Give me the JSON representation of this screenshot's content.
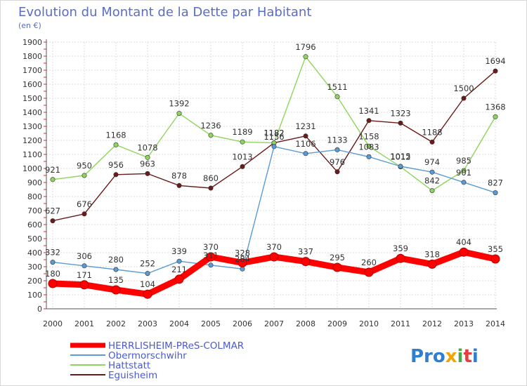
{
  "chart_data": {
    "type": "line",
    "title": "Evolution du Montant de la Dette par Habitant",
    "subtitle": "(en €)",
    "xlabel": "",
    "ylabel": "",
    "x": [
      "2000",
      "2001",
      "2002",
      "2003",
      "2004",
      "2005",
      "2006",
      "2007",
      "2008",
      "2009",
      "2010",
      "2011",
      "2012",
      "2013",
      "2014"
    ],
    "ylim": [
      0,
      1900
    ],
    "yticks": [
      0,
      100,
      200,
      300,
      400,
      500,
      600,
      700,
      800,
      900,
      1000,
      1100,
      1200,
      1300,
      1400,
      1500,
      1600,
      1700,
      1800,
      1900
    ],
    "grid": true,
    "legend_position": "bottom-left",
    "series": [
      {
        "name": "HERRLISHEIM-PReS-COLMAR",
        "color": "#ff0000",
        "values": [
          180,
          171,
          135,
          104,
          211,
          370,
          328,
          370,
          337,
          295,
          260,
          359,
          318,
          404,
          355
        ]
      },
      {
        "name": "Obermorschwihr",
        "color": "#5b9bd5",
        "values": [
          332,
          306,
          280,
          252,
          339,
          311,
          284,
          1156,
          1106,
          1133,
          1083,
          1015,
          974,
          901,
          827
        ]
      },
      {
        "name": "Hattstatt",
        "color": "#8fd45e",
        "values": [
          921,
          950,
          1168,
          1078,
          1392,
          1236,
          1189,
          1182,
          1796,
          1511,
          1158,
          1012,
          842,
          985,
          1368
        ]
      },
      {
        "name": "Eguisheim",
        "color": "#6b1a1a",
        "values": [
          627,
          676,
          956,
          963,
          878,
          860,
          1013,
          1182,
          1231,
          976,
          1341,
          1323,
          1188,
          1500,
          1694
        ]
      }
    ]
  },
  "branding": {
    "logo_text": "Proxiti"
  }
}
